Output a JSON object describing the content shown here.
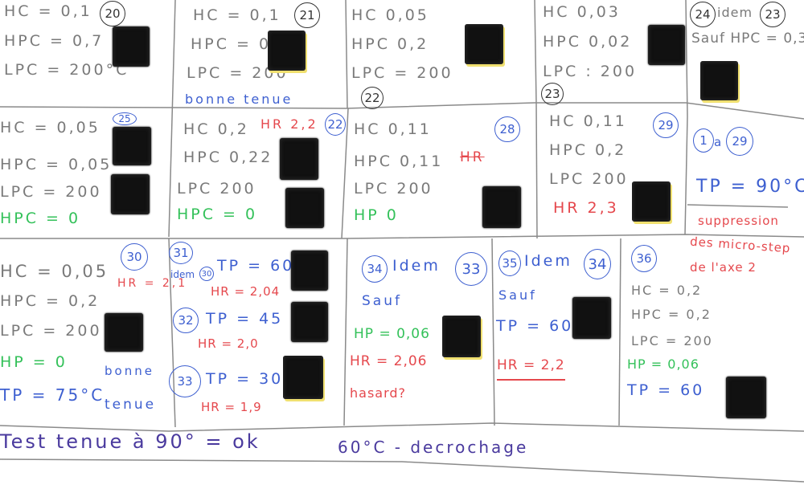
{
  "cells": {
    "c20": {
      "label": "20",
      "lines": [
        "HC = 0,1",
        "HPC = 0,7",
        "LPC = 200°C"
      ]
    },
    "c21": {
      "label": "21",
      "lines": [
        "HC = 0,1",
        "HPC = 0,2",
        "LPC = 200"
      ],
      "note": "bonne tenue"
    },
    "c22a": {
      "label": "22",
      "lines": [
        "HC 0,05",
        "HPC 0,2",
        "LPC = 200"
      ]
    },
    "c23": {
      "label": "23",
      "lines": [
        "HC 0,03",
        "HPC 0,02",
        "LPC : 200"
      ]
    },
    "c24": {
      "label": "24",
      "idem": "idem",
      "ref": "23",
      "sauf": "Sauf HPC = 0,3"
    },
    "c25": {
      "label": "25",
      "lines": [
        "HC = 0,05",
        "HPC = 0,05",
        "LPC = 200"
      ],
      "hp": "HPC = 0"
    },
    "c26": {
      "label": "22",
      "lines": [
        "HC 0,2",
        "HPC 0,22",
        "LPC 200"
      ],
      "hr": "HR 2,2",
      "hp": "HPC = 0"
    },
    "c28": {
      "label": "28",
      "lines": [
        "HC 0,11",
        "HPC 0,11",
        "LPC 200"
      ],
      "hr_struck": "HR",
      "hp": "HP 0"
    },
    "c29": {
      "label": "29",
      "lines": [
        "HC 0,11",
        "HPC 0,2",
        "LPC 200"
      ],
      "hr": "HR 2,3"
    },
    "range": {
      "from": "1",
      "sep": "a",
      "to": "29",
      "tp": "TP = 90°C"
    },
    "suppression": [
      "suppression",
      "des micro-step",
      "de l'axe 2"
    ],
    "c30": {
      "label": "30",
      "lines": [
        "HC = 0,05",
        "HPC = 0,2",
        "LPC = 200"
      ],
      "hr": "HR = 2,1",
      "hp": "HP = 0",
      "tp": "TP = 75°C",
      "note1": "bonne",
      "note2": "tenue"
    },
    "c31": {
      "label": "31",
      "idem": "idem",
      "ref": "30",
      "tp": "TP = 60",
      "hr": "HR = 2,04"
    },
    "c32": {
      "label": "32",
      "tp": "TP = 45",
      "hr": "HR = 2,0"
    },
    "c33": {
      "label": "33",
      "tp": "TP = 30",
      "hr": "HR = 1,9"
    },
    "c34": {
      "label": "34",
      "idem": "Idem",
      "ref": "33",
      "sauf": "Sauf",
      "hp": "HP = 0,06",
      "hr": "HR = 2,06",
      "note": "hasard?"
    },
    "c35": {
      "label": "35",
      "idem": "Idem",
      "ref": "34",
      "sauf": "Sauf",
      "tp": "TP = 60",
      "hr": "HR = 2,2"
    },
    "c36": {
      "label": "36",
      "lines": [
        "HC = 0,2",
        "HPC = 0,2",
        "LPC = 200"
      ],
      "hp": "HP = 0,06",
      "tp": "TP = 60"
    }
  },
  "footer": {
    "left": "Test tenue à 90° = ok",
    "right": "60°C - decrochage"
  },
  "colors": {
    "pencil": "#7a7a7a",
    "blue": "#3d5fd0",
    "red": "#e5484d",
    "green": "#34c15a",
    "purple": "#4a3a9e",
    "sample": "#111111"
  }
}
